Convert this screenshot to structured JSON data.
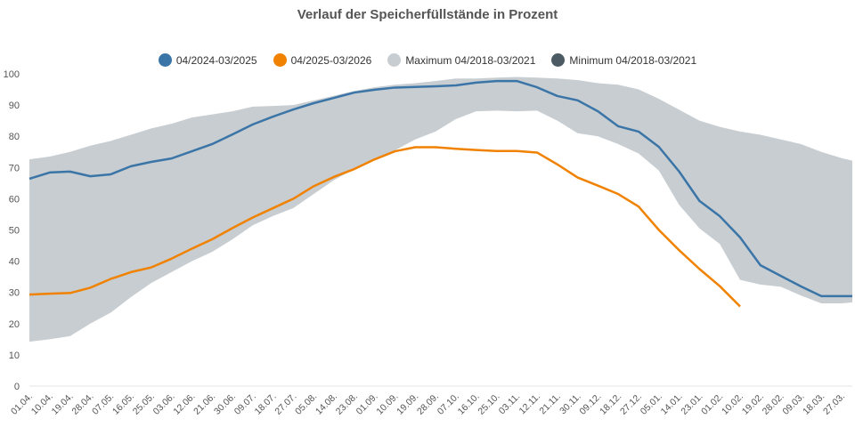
{
  "chart_data": {
    "type": "line",
    "title": "Verlauf der Speicherfüllstände in Prozent",
    "xlabel": "",
    "ylabel": "",
    "ylim": [
      0,
      100
    ],
    "yticks": [
      0,
      10,
      20,
      30,
      40,
      50,
      60,
      70,
      80,
      90,
      100
    ],
    "grid": false,
    "legend": "top",
    "categories": [
      "01.04.",
      "10.04.",
      "19.04.",
      "28.04.",
      "07.05.",
      "16.05.",
      "25.05.",
      "03.06.",
      "12.06.",
      "21.06.",
      "30.06.",
      "09.07.",
      "18.07.",
      "27.07.",
      "05.08.",
      "14.08.",
      "23.08.",
      "01.09.",
      "10.09.",
      "19.09.",
      "28.09.",
      "07.10.",
      "16.10.",
      "25.10.",
      "03.11.",
      "12.11.",
      "21.11.",
      "30.11.",
      "09.12.",
      "18.12.",
      "27.12.",
      "05.01.",
      "14.01.",
      "23.01.",
      "01.02.",
      "10.02.",
      "19.02.",
      "28.02.",
      "09.03.",
      "18.03.",
      "27.03."
    ],
    "band": {
      "max_name": "Maximum 04/2018-03/2021",
      "min_name": "Minimum 04/2018-03/2021",
      "max": [
        72.6,
        73.5,
        75,
        77,
        78.5,
        80.5,
        82.5,
        84,
        86,
        87,
        88,
        89.5,
        89.7,
        90,
        91.5,
        93,
        94.5,
        95.7,
        96.5,
        97,
        97.7,
        98.5,
        98.5,
        98.8,
        99,
        98.8,
        98.5,
        98,
        97,
        96.5,
        95,
        92,
        88.5,
        85,
        83,
        81.5,
        80.5,
        79,
        77.5,
        75,
        73
      ],
      "min": [
        14.2,
        15,
        16,
        20,
        23.5,
        28.5,
        33,
        36.5,
        40,
        43,
        47,
        51.5,
        54.5,
        57,
        61.5,
        66,
        69.5,
        72.5,
        75.5,
        79,
        81.5,
        85.5,
        88,
        88.2,
        88,
        88.2,
        85,
        81,
        80,
        77.5,
        74.5,
        69,
        58,
        50.5,
        45.5,
        34,
        32.5,
        31.8,
        29,
        26.5,
        26.5
      ],
      "max_color": "#c7cdd1",
      "min_color": "#4b5a63"
    },
    "series": [
      {
        "name": "04/2024-03/2025",
        "color": "#3b75a7",
        "values": [
          66.4,
          68.4,
          68.7,
          67.2,
          67.8,
          70.4,
          71.8,
          72.9,
          75.2,
          77.5,
          80.6,
          83.8,
          86.3,
          88.6,
          90.6,
          92.3,
          94,
          94.9,
          95.6,
          95.8,
          96,
          96.3,
          97.2,
          97.7,
          97.7,
          95.7,
          92.9,
          91.5,
          88,
          83.2,
          81.5,
          76.6,
          68.7,
          59.3,
          54.4,
          47.6,
          38.7,
          35.3,
          31.9,
          28.8,
          28.8
        ]
      },
      {
        "name": "04/2025-03/2026",
        "color": "#f08200",
        "values": [
          29.3,
          29.6,
          29.8,
          31.5,
          34.3,
          36.5,
          38,
          40.8,
          44,
          47,
          50.6,
          54,
          57,
          60,
          64,
          67,
          69.5,
          72.6,
          75.2,
          76.5,
          76.5,
          76,
          75.6,
          75.3,
          75.3,
          74.8,
          71,
          66.8,
          64.2,
          61.5,
          57.5,
          50,
          43.5,
          37.5,
          32,
          25.5,
          null,
          null,
          null,
          null,
          null
        ]
      }
    ]
  }
}
